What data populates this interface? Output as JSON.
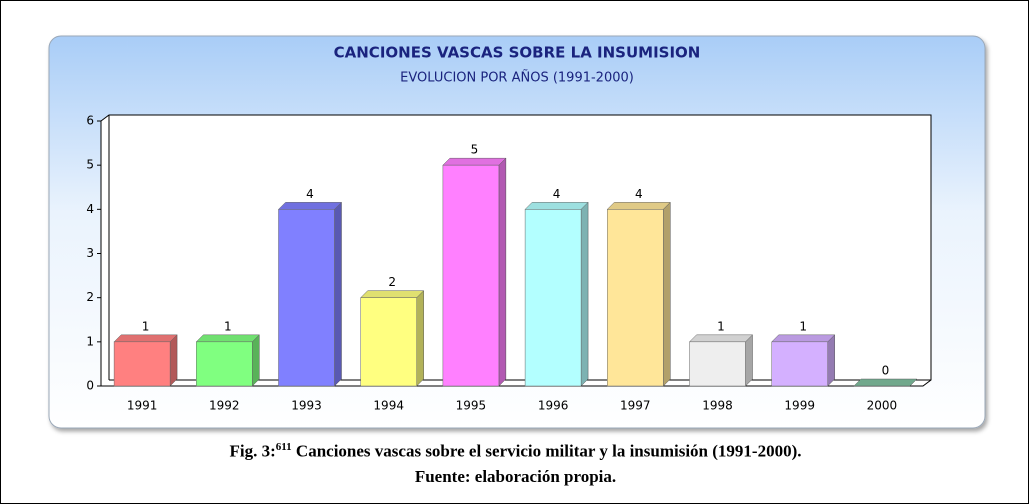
{
  "chart_data": {
    "type": "bar3d",
    "title": "CANCIONES VASCAS SOBRE LA INSUMISION",
    "subtitle": "EVOLUCION POR AÑOS (1991-2000)",
    "categories": [
      "1991",
      "1992",
      "1993",
      "1994",
      "1995",
      "1996",
      "1997",
      "1998",
      "1999",
      "2000"
    ],
    "values": [
      1,
      1,
      4,
      2,
      5,
      4,
      4,
      1,
      1,
      0
    ],
    "colors": [
      "#ff8080",
      "#80ff80",
      "#8080ff",
      "#ffff80",
      "#ff80ff",
      "#b3ffff",
      "#ffe699",
      "#eeeeee",
      "#d4b0ff",
      "#80c0a0"
    ],
    "ylim": [
      0,
      6
    ],
    "yticks": [
      0,
      1,
      2,
      3,
      4,
      5,
      6
    ]
  },
  "caption": {
    "label": "Fig. 3:",
    "note": "611",
    "text": "Canciones vascas sobre el servicio militar y la insumisión (1991-2000).",
    "source": "Fuente: elaboración propia."
  }
}
